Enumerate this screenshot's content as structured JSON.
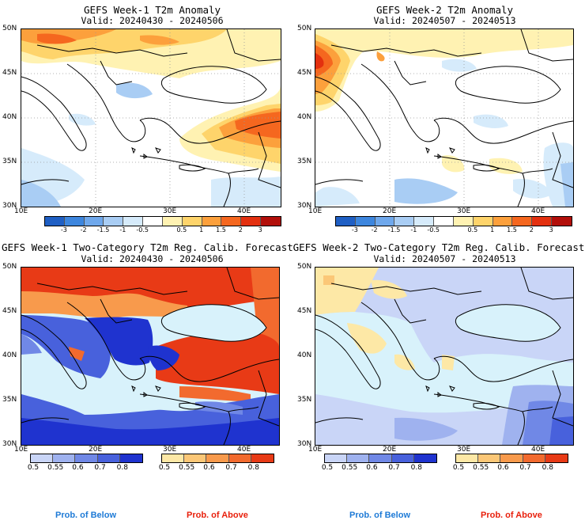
{
  "panels": [
    {
      "title": "GEFS Week-1 T2m Anomaly",
      "valid": "Valid: 20240430 - 20240506",
      "lat_labels": [
        "50N",
        "45N",
        "40N",
        "35N",
        "30N"
      ],
      "lon_labels": [
        "10E",
        "20E",
        "30E",
        "40E"
      ],
      "colorbar": {
        "colors": [
          "#1f5fc4",
          "#3d86de",
          "#6fa8ec",
          "#a9cdf4",
          "#d6ebfb",
          "#ffffff",
          "#fff2b2",
          "#fed46b",
          "#fca03c",
          "#f5671f",
          "#e3300f",
          "#b20f0a"
        ],
        "ticks": [
          "-3",
          "-2",
          "-1.5",
          "-1",
          "-0.5",
          "0.5",
          "1",
          "1.5",
          "2",
          "3"
        ]
      }
    },
    {
      "title": "GEFS Week-2 T2m Anomaly",
      "valid": "Valid: 20240507 - 20240513",
      "lat_labels": [
        "50N",
        "45N",
        "40N",
        "35N",
        "30N"
      ],
      "lon_labels": [
        "10E",
        "20E",
        "30E",
        "40E"
      ],
      "colorbar": {
        "colors": [
          "#1f5fc4",
          "#3d86de",
          "#6fa8ec",
          "#a9cdf4",
          "#d6ebfb",
          "#ffffff",
          "#fff2b2",
          "#fed46b",
          "#fca03c",
          "#f5671f",
          "#e3300f",
          "#b20f0a"
        ],
        "ticks": [
          "-3",
          "-2",
          "-1.5",
          "-1",
          "-0.5",
          "0.5",
          "1",
          "1.5",
          "2",
          "3"
        ]
      }
    },
    {
      "title": "GEFS Week-1 Two-Category T2m Reg. Calib. Forecast",
      "valid": "Valid: 20240430 - 20240506",
      "lat_labels": [
        "50N",
        "45N",
        "40N",
        "35N",
        "30N"
      ],
      "lon_labels": [
        "10E",
        "20E",
        "30E",
        "40E"
      ],
      "below_colors": [
        "#c9d5f7",
        "#9fb2ef",
        "#7088e6",
        "#4861dc",
        "#1f33cf"
      ],
      "above_colors": [
        "#fde8a6",
        "#fbc777",
        "#f89a4c",
        "#f26a2e",
        "#e83a16"
      ],
      "prob_ticks": [
        "0.5",
        "0.55",
        "0.6",
        "0.7",
        "0.8"
      ]
    },
    {
      "title": "GEFS Week-2 Two-Category T2m Reg. Calib. Forecast",
      "valid": "Valid: 20240507 - 20240513",
      "lat_labels": [
        "50N",
        "45N",
        "40N",
        "35N",
        "30N"
      ],
      "lon_labels": [
        "10E",
        "20E",
        "30E",
        "40E"
      ],
      "below_colors": [
        "#c9d5f7",
        "#9fb2ef",
        "#7088e6",
        "#4861dc",
        "#1f33cf"
      ],
      "above_colors": [
        "#fde8a6",
        "#fbc777",
        "#f89a4c",
        "#f26a2e",
        "#e83a16"
      ],
      "prob_ticks": [
        "0.5",
        "0.55",
        "0.6",
        "0.7",
        "0.8"
      ]
    }
  ],
  "legend": {
    "below": "Prob. of Below",
    "above": "Prob. of Above",
    "below_color": "#1e7ad6",
    "above_color": "#e8200c"
  }
}
